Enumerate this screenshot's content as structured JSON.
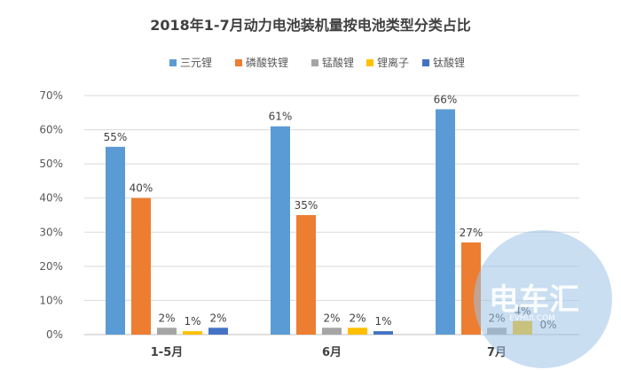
{
  "chart_data": {
    "type": "bar",
    "title": "2018年1-7月动力电池装机量按电池类型分类占比",
    "categories": [
      "1-5月",
      "6月",
      "7月"
    ],
    "series": [
      {
        "name": "三元锂",
        "color": "#5B9BD5",
        "values": [
          55,
          61,
          66
        ]
      },
      {
        "name": "磷酸铁锂",
        "color": "#ED7D31",
        "values": [
          40,
          35,
          27
        ]
      },
      {
        "name": "锰酸锂",
        "color": "#A5A5A5",
        "values": [
          2,
          2,
          2
        ]
      },
      {
        "name": "锂离子",
        "color": "#FFC000",
        "values": [
          1,
          2,
          4
        ]
      },
      {
        "name": "钛酸锂",
        "color": "#4472C4",
        "values": [
          2,
          1,
          0
        ]
      }
    ],
    "data_labels": [
      [
        "55%",
        "40%",
        "2%",
        "1%",
        "2%"
      ],
      [
        "61%",
        "35%",
        "2%",
        "2%",
        "1%"
      ],
      [
        "66%",
        "27%",
        "2%",
        "4%",
        "0%"
      ]
    ],
    "y_ticks": [
      "0%",
      "10%",
      "20%",
      "30%",
      "40%",
      "50%",
      "60%",
      "70%"
    ],
    "ylim": [
      0,
      70
    ],
    "grid": true,
    "legend_position": "top",
    "value_unit": "%"
  },
  "watermark": {
    "text": "电车汇",
    "sub": "EVHUI.COM"
  }
}
